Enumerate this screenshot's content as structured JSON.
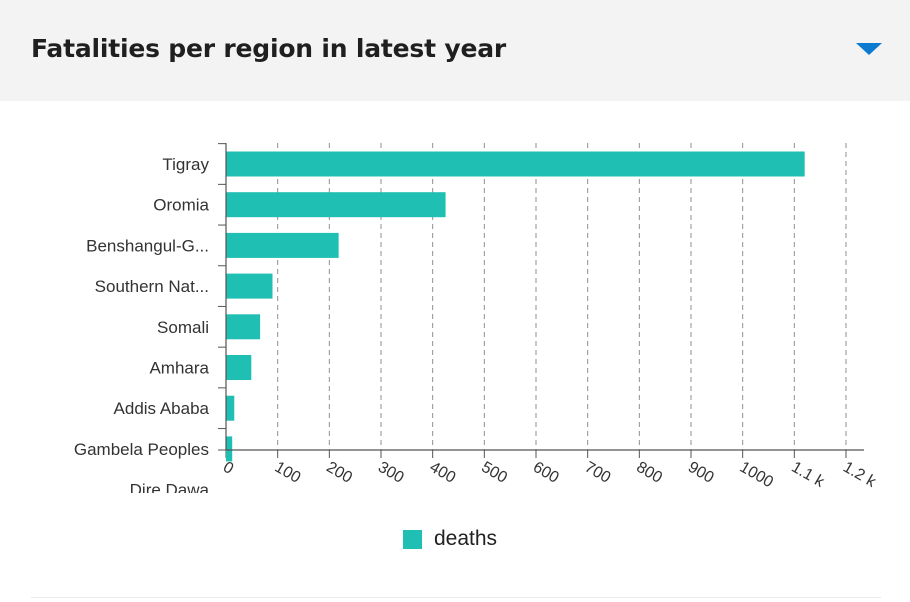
{
  "panel": {
    "title": "Fatalities per region in latest year",
    "toggle_icon": "caret-down-icon"
  },
  "colors": {
    "bar": "#1fbfb3",
    "toggle": "#0b7ad1",
    "header_bg": "#f3f3f3"
  },
  "chart_data": {
    "type": "bar",
    "orientation": "horizontal",
    "categories": [
      "Tigray",
      "Oromia",
      "Benshangul-G...",
      "Southern Nat...",
      "Somali",
      "Amhara",
      "Addis Ababa",
      "Gambela Peoples",
      "Dire Dawa"
    ],
    "series": [
      {
        "name": "deaths",
        "values": [
          1120,
          425,
          218,
          90,
          66,
          49,
          16,
          12,
          0
        ]
      }
    ],
    "xticks": [
      "0",
      "100",
      "200",
      "300",
      "400",
      "500",
      "600",
      "700",
      "800",
      "900",
      "1000",
      "1.1 k",
      "1.2 k"
    ],
    "xlim": [
      0,
      1200
    ],
    "grid": "vertical dashed",
    "legend_position": "bottom-center"
  }
}
